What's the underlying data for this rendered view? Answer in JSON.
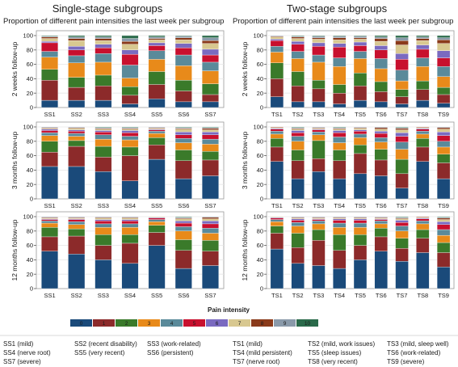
{
  "figure": {
    "left_title": "Single-stage subgroups",
    "right_title": "Two-stage subgroups",
    "left_subtitle": "Proportion of different pain intensities the last week per subgroup",
    "right_subtitle": "Proportion of different pain intensities the last week per subgroup",
    "row_labels": [
      "2 weeks follow-up",
      "3 months follow-up",
      "12 months follow-up"
    ],
    "legend_title": "Pain intensity",
    "legend_entries": [
      "0",
      "1",
      "2",
      "3",
      "4",
      "5",
      "6",
      "7",
      "8",
      "9",
      "10"
    ],
    "subgroup_notes": [
      "SS1 (mild)",
      "SS2 (recent disability)",
      "SS3 (work-related)",
      "SS4 (nerve root)",
      "SS5 (very recent)",
      "SS6 (persistent)",
      "SS7 (severe)",
      "TS1 (mild)",
      "TS2 (mild, work issues)",
      "TS3 (mild, sleep well)",
      "TS4 (mild persistent)",
      "TS5 (sleep issues)",
      "TS6 (work-related)",
      "TS7 (nerve root)",
      "TS8 (very recent)",
      "TS9 (severe)"
    ]
  },
  "colors": [
    "#1a4a7a",
    "#8c2a2a",
    "#3a7a2a",
    "#e88a1a",
    "#5a8a9a",
    "#c8102e",
    "#7a6ac0",
    "#d8c890",
    "#8a3a1a",
    "#8a9aaa",
    "#2a6a4a"
  ],
  "chart_data": [
    {
      "type": "bar",
      "stacked": true,
      "ylim": [
        0,
        100
      ],
      "yticks": [
        0,
        20,
        40,
        60,
        80,
        100
      ],
      "ylabel": "2 weeks follow-up",
      "title": "Proportion of different pain intensities the last week per subgroup",
      "categories": [
        "SS1",
        "SS2",
        "SS3",
        "SS4",
        "SS5",
        "SS6",
        "SS7"
      ],
      "series": [
        {
          "name": "0",
          "values": [
            10,
            10,
            10,
            5,
            12,
            8,
            8
          ]
        },
        {
          "name": "1",
          "values": [
            28,
            18,
            20,
            12,
            20,
            15,
            10
          ]
        },
        {
          "name": "2",
          "values": [
            15,
            14,
            15,
            12,
            18,
            15,
            15
          ]
        },
        {
          "name": "3",
          "values": [
            17,
            20,
            18,
            12,
            17,
            20,
            18
          ]
        },
        {
          "name": "4",
          "values": [
            8,
            10,
            12,
            18,
            12,
            15,
            12
          ]
        },
        {
          "name": "5",
          "values": [
            12,
            8,
            8,
            15,
            7,
            10,
            10
          ]
        },
        {
          "name": "6",
          "values": [
            2,
            5,
            5,
            6,
            4,
            6,
            8
          ]
        },
        {
          "name": "7",
          "values": [
            4,
            8,
            5,
            8,
            4,
            5,
            8
          ]
        },
        {
          "name": "8",
          "values": [
            2,
            3,
            3,
            4,
            2,
            3,
            4
          ]
        },
        {
          "name": "9",
          "values": [
            1,
            2,
            2,
            4,
            2,
            2,
            4
          ]
        },
        {
          "name": "10",
          "values": [
            1,
            2,
            2,
            4,
            2,
            1,
            3
          ]
        }
      ]
    },
    {
      "type": "bar",
      "stacked": true,
      "ylim": [
        0,
        100
      ],
      "yticks": [
        0,
        20,
        40,
        60,
        80,
        100
      ],
      "ylabel": "2 weeks follow-up",
      "title": "Proportion of different pain intensities the last week per subgroup",
      "categories": [
        "TS1",
        "TS2",
        "TS3",
        "TS4",
        "TS5",
        "TS6",
        "TS7",
        "TS8",
        "TS9"
      ],
      "series": [
        {
          "name": "0",
          "values": [
            15,
            8,
            8,
            5,
            10,
            8,
            5,
            10,
            6
          ]
        },
        {
          "name": "1",
          "values": [
            25,
            22,
            18,
            15,
            20,
            14,
            10,
            15,
            12
          ]
        },
        {
          "name": "2",
          "values": [
            22,
            20,
            12,
            12,
            18,
            14,
            10,
            12,
            10
          ]
        },
        {
          "name": "3",
          "values": [
            15,
            18,
            25,
            25,
            20,
            18,
            12,
            20,
            15
          ]
        },
        {
          "name": "4",
          "values": [
            8,
            10,
            10,
            12,
            10,
            14,
            15,
            12,
            14
          ]
        },
        {
          "name": "5",
          "values": [
            8,
            10,
            12,
            15,
            8,
            12,
            15,
            12,
            12
          ]
        },
        {
          "name": "6",
          "values": [
            2,
            4,
            5,
            5,
            5,
            6,
            8,
            6,
            10
          ]
        },
        {
          "name": "7",
          "values": [
            3,
            4,
            5,
            5,
            4,
            6,
            12,
            6,
            10
          ]
        },
        {
          "name": "8",
          "values": [
            1,
            2,
            2,
            3,
            2,
            4,
            6,
            3,
            5
          ]
        },
        {
          "name": "9",
          "values": [
            1,
            1,
            2,
            2,
            2,
            2,
            4,
            2,
            3
          ]
        },
        {
          "name": "10",
          "values": [
            0,
            1,
            1,
            1,
            1,
            2,
            3,
            2,
            3
          ]
        }
      ]
    },
    {
      "type": "bar",
      "stacked": true,
      "ylim": [
        0,
        100
      ],
      "yticks": [
        0,
        20,
        40,
        60,
        80,
        100
      ],
      "ylabel": "3 months follow-up",
      "categories": [
        "SS1",
        "SS2",
        "SS3",
        "SS4",
        "SS5",
        "SS6",
        "SS7"
      ],
      "series": [
        {
          "name": "0",
          "values": [
            45,
            45,
            38,
            25,
            55,
            28,
            32
          ]
        },
        {
          "name": "1",
          "values": [
            20,
            28,
            20,
            35,
            20,
            25,
            22
          ]
        },
        {
          "name": "2",
          "values": [
            15,
            8,
            15,
            12,
            10,
            15,
            12
          ]
        },
        {
          "name": "3",
          "values": [
            8,
            6,
            10,
            10,
            6,
            10,
            10
          ]
        },
        {
          "name": "4",
          "values": [
            4,
            4,
            6,
            5,
            3,
            6,
            7
          ]
        },
        {
          "name": "5",
          "values": [
            3,
            3,
            4,
            5,
            2,
            5,
            6
          ]
        },
        {
          "name": "6",
          "values": [
            2,
            2,
            2,
            3,
            1,
            4,
            4
          ]
        },
        {
          "name": "7",
          "values": [
            1,
            2,
            2,
            2,
            1,
            4,
            3
          ]
        },
        {
          "name": "8",
          "values": [
            1,
            1,
            1,
            1,
            1,
            1,
            2
          ]
        },
        {
          "name": "9",
          "values": [
            1,
            1,
            1,
            1,
            1,
            1,
            1
          ]
        },
        {
          "name": "10",
          "values": [
            0,
            0,
            1,
            1,
            0,
            1,
            1
          ]
        }
      ]
    },
    {
      "type": "bar",
      "stacked": true,
      "ylim": [
        0,
        100
      ],
      "yticks": [
        0,
        20,
        40,
        60,
        80,
        100
      ],
      "ylabel": "3 months follow-up",
      "categories": [
        "TS1",
        "TS2",
        "TS3",
        "TS4",
        "TS5",
        "TS6",
        "TS7",
        "TS8",
        "TS9"
      ],
      "series": [
        {
          "name": "0",
          "values": [
            52,
            28,
            38,
            28,
            35,
            32,
            15,
            52,
            28
          ]
        },
        {
          "name": "1",
          "values": [
            20,
            25,
            18,
            25,
            28,
            22,
            20,
            20,
            22
          ]
        },
        {
          "name": "2",
          "values": [
            12,
            15,
            25,
            15,
            12,
            15,
            20,
            12,
            12
          ]
        },
        {
          "name": "3",
          "values": [
            6,
            12,
            8,
            10,
            10,
            10,
            14,
            6,
            10
          ]
        },
        {
          "name": "4",
          "values": [
            4,
            7,
            4,
            8,
            5,
            6,
            10,
            4,
            8
          ]
        },
        {
          "name": "5",
          "values": [
            3,
            5,
            3,
            6,
            4,
            6,
            8,
            3,
            8
          ]
        },
        {
          "name": "6",
          "values": [
            1,
            3,
            1,
            3,
            2,
            3,
            5,
            1,
            5
          ]
        },
        {
          "name": "7",
          "values": [
            1,
            2,
            1,
            2,
            2,
            3,
            4,
            1,
            4
          ]
        },
        {
          "name": "8",
          "values": [
            1,
            1,
            1,
            1,
            1,
            2,
            2,
            1,
            2
          ]
        },
        {
          "name": "9",
          "values": [
            0,
            1,
            1,
            1,
            1,
            1,
            1,
            0,
            1
          ]
        },
        {
          "name": "10",
          "values": [
            0,
            1,
            0,
            1,
            0,
            0,
            1,
            0,
            0
          ]
        }
      ]
    },
    {
      "type": "bar",
      "stacked": true,
      "ylim": [
        0,
        100
      ],
      "yticks": [
        0,
        20,
        40,
        60,
        80,
        100
      ],
      "ylabel": "12 months follow-up",
      "categories": [
        "SS1",
        "SS2",
        "SS3",
        "SS4",
        "SS5",
        "SS6",
        "SS7"
      ],
      "series": [
        {
          "name": "0",
          "values": [
            52,
            48,
            40,
            35,
            60,
            28,
            32
          ]
        },
        {
          "name": "1",
          "values": [
            20,
            25,
            20,
            28,
            18,
            25,
            20
          ]
        },
        {
          "name": "2",
          "values": [
            13,
            10,
            15,
            12,
            10,
            15,
            15
          ]
        },
        {
          "name": "3",
          "values": [
            6,
            6,
            10,
            10,
            5,
            12,
            10
          ]
        },
        {
          "name": "4",
          "values": [
            3,
            4,
            5,
            5,
            3,
            6,
            7
          ]
        },
        {
          "name": "5",
          "values": [
            2,
            3,
            4,
            4,
            2,
            5,
            6
          ]
        },
        {
          "name": "6",
          "values": [
            1,
            1,
            2,
            2,
            1,
            3,
            4
          ]
        },
        {
          "name": "7",
          "values": [
            1,
            1,
            2,
            2,
            1,
            3,
            3
          ]
        },
        {
          "name": "8",
          "values": [
            1,
            1,
            1,
            1,
            0,
            1,
            2
          ]
        },
        {
          "name": "9",
          "values": [
            1,
            1,
            1,
            1,
            0,
            1,
            1
          ]
        },
        {
          "name": "10",
          "values": [
            0,
            0,
            0,
            0,
            0,
            1,
            0
          ]
        }
      ]
    },
    {
      "type": "bar",
      "stacked": true,
      "ylim": [
        0,
        100
      ],
      "yticks": [
        0,
        20,
        40,
        60,
        80,
        100
      ],
      "ylabel": "12 months follow-up",
      "categories": [
        "TS1",
        "TS2",
        "TS3",
        "TS4",
        "TS5",
        "TS6",
        "TS7",
        "TS8",
        "TS9"
      ],
      "series": [
        {
          "name": "0",
          "values": [
            55,
            35,
            32,
            28,
            40,
            52,
            38,
            50,
            30
          ]
        },
        {
          "name": "1",
          "values": [
            22,
            22,
            35,
            25,
            20,
            20,
            18,
            20,
            20
          ]
        },
        {
          "name": "2",
          "values": [
            10,
            20,
            15,
            22,
            15,
            12,
            14,
            12,
            14
          ]
        },
        {
          "name": "3",
          "values": [
            6,
            10,
            8,
            10,
            10,
            6,
            10,
            8,
            10
          ]
        },
        {
          "name": "4",
          "values": [
            3,
            5,
            4,
            6,
            6,
            4,
            7,
            4,
            8
          ]
        },
        {
          "name": "5",
          "values": [
            2,
            3,
            2,
            4,
            4,
            2,
            5,
            3,
            7
          ]
        },
        {
          "name": "6",
          "values": [
            1,
            2,
            1,
            2,
            2,
            1,
            3,
            1,
            4
          ]
        },
        {
          "name": "7",
          "values": [
            1,
            1,
            1,
            1,
            1,
            1,
            2,
            1,
            3
          ]
        },
        {
          "name": "8",
          "values": [
            0,
            1,
            1,
            1,
            1,
            1,
            1,
            1,
            2
          ]
        },
        {
          "name": "9",
          "values": [
            0,
            1,
            1,
            1,
            1,
            1,
            1,
            0,
            1
          ]
        },
        {
          "name": "10",
          "values": [
            0,
            0,
            0,
            0,
            0,
            0,
            1,
            0,
            1
          ]
        }
      ]
    }
  ]
}
